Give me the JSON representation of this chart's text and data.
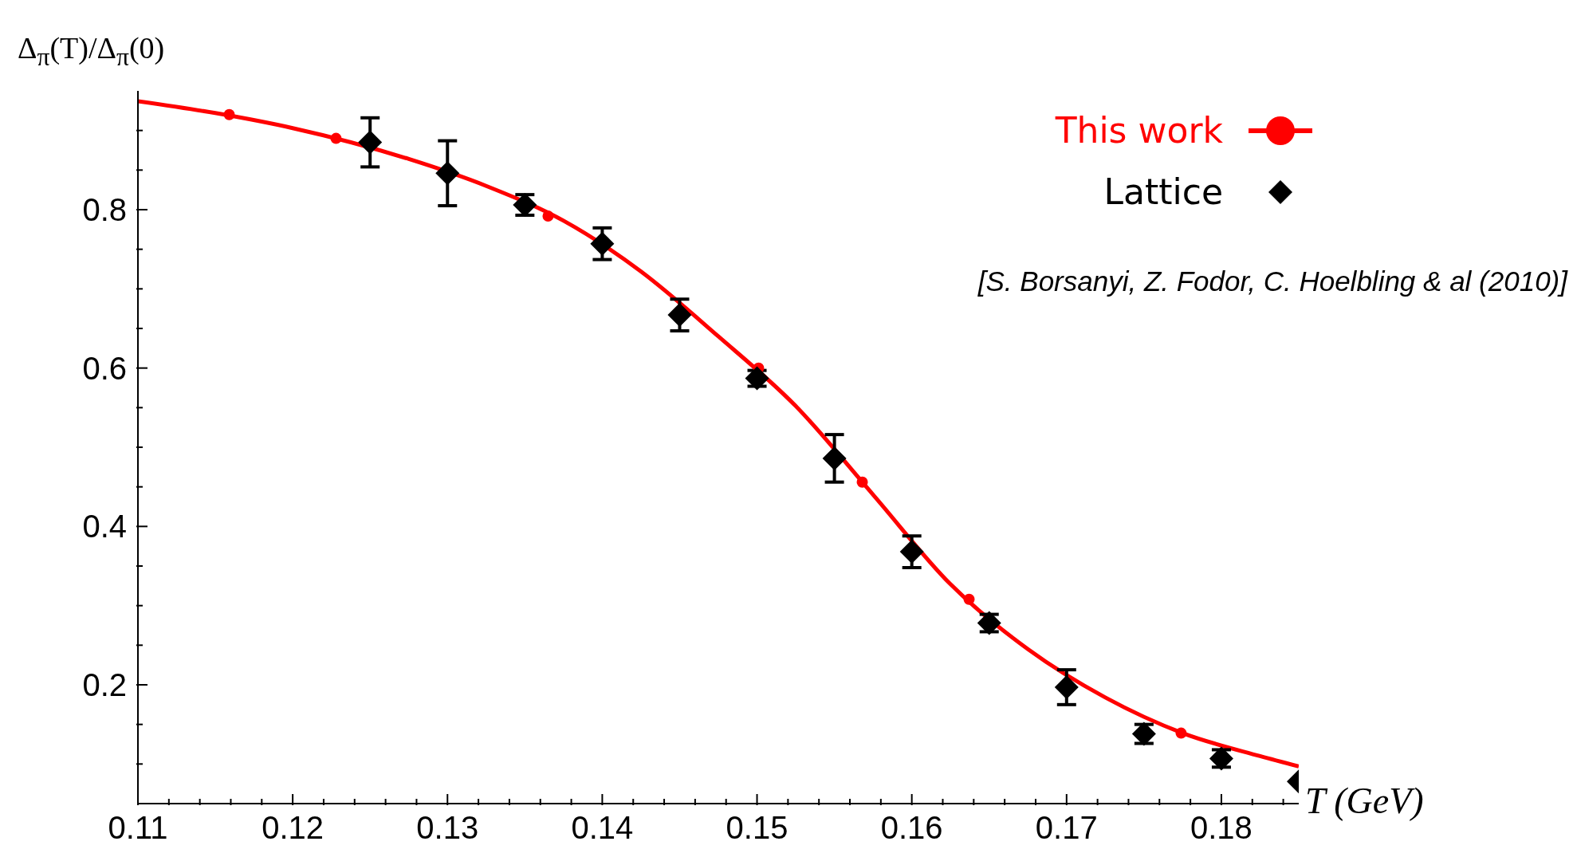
{
  "chart_data": {
    "type": "scatter",
    "ylabel": "Δ$_{π}$(T)/Δ$_{π}$(0)",
    "xlabel": "T (GeV)",
    "xlim": [
      0.11,
      0.185
    ],
    "ylim": [
      0.05,
      0.95
    ],
    "xticks": [
      0.11,
      {
        "value": 0.112,
        "label": null
      },
      {
        "value": 0.114,
        "label": null
      },
      {
        "value": 0.116,
        "label": null
      },
      {
        "value": 0.118,
        "label": null
      },
      0.12,
      {
        "value": 0.122,
        "label": null
      },
      {
        "value": 0.124,
        "label": null
      },
      {
        "value": 0.126,
        "label": null
      },
      {
        "value": 0.128,
        "label": null
      },
      0.13,
      {
        "value": 0.132,
        "label": null
      },
      {
        "value": 0.134,
        "label": null
      },
      {
        "value": 0.136,
        "label": null
      },
      {
        "value": 0.138,
        "label": null
      },
      0.14,
      {
        "value": 0.142,
        "label": null
      },
      {
        "value": 0.144,
        "label": null
      },
      {
        "value": 0.146,
        "label": null
      },
      {
        "value": 0.148,
        "label": null
      },
      0.15,
      {
        "value": 0.152,
        "label": null
      },
      {
        "value": 0.154,
        "label": null
      },
      {
        "value": 0.156,
        "label": null
      },
      {
        "value": 0.158,
        "label": null
      },
      0.16,
      {
        "value": 0.162,
        "label": null
      },
      {
        "value": 0.164,
        "label": null
      },
      {
        "value": 0.166,
        "label": null
      },
      {
        "value": 0.168,
        "label": null
      },
      0.17,
      {
        "value": 0.172,
        "label": null
      },
      {
        "value": 0.174,
        "label": null
      },
      {
        "value": 0.176,
        "label": null
      },
      {
        "value": 0.178,
        "label": null
      },
      0.18,
      {
        "value": 0.182,
        "label": null
      },
      {
        "value": 0.184,
        "label": null
      }
    ],
    "yticks": [
      {
        "value": 0.1,
        "label": null
      },
      {
        "value": 0.15,
        "label": null
      },
      0.2,
      {
        "value": 0.25,
        "label": null
      },
      {
        "value": 0.3,
        "label": null
      },
      {
        "value": 0.35,
        "label": null
      },
      0.4,
      {
        "value": 0.45,
        "label": null
      },
      {
        "value": 0.5,
        "label": null
      },
      {
        "value": 0.55,
        "label": null
      },
      0.6,
      {
        "value": 0.65,
        "label": null
      },
      {
        "value": 0.7,
        "label": null
      },
      {
        "value": 0.75,
        "label": null
      },
      0.8,
      {
        "value": 0.85,
        "label": null
      },
      {
        "value": 0.9,
        "label": null
      }
    ],
    "grid": false,
    "legend": "top right",
    "annotations": [
      "[S. Borsanyi, Z. Fodor, C. Hoelbling & al (2010)]"
    ],
    "series": [
      {
        "name": "This work",
        "type": "line",
        "color": "#ff0000",
        "marker": "none",
        "x": [
          0.11,
          0.115,
          0.12,
          0.1275,
          0.1325,
          0.1375,
          0.1425,
          0.1475,
          0.1525,
          0.1575,
          0.1625,
          0.1675,
          0.1725,
          0.1775,
          0.1825,
          0.185
        ],
        "values": [
          0.937,
          0.922,
          0.903,
          0.864,
          0.83,
          0.786,
          0.722,
          0.64,
          0.552,
          0.44,
          0.327,
          0.245,
          0.184,
          0.139,
          0.11,
          0.097
        ]
      },
      {
        "color": "#ff0000",
        "marker": "circle",
        "x": [
          0.1159,
          0.1228,
          0.1365,
          0.1501,
          0.1568,
          0.1637,
          0.1774
        ],
        "values": [
          0.92,
          0.89,
          0.792,
          0.6,
          0.456,
          0.308,
          0.139
        ]
      },
      {
        "name": "Lattice",
        "color": "#000000",
        "marker": "diamond",
        "x": [
          0.125,
          0.13,
          0.135,
          0.14,
          0.145,
          0.15,
          0.155,
          0.16,
          0.165,
          0.17,
          0.175,
          0.18,
          0.185
        ],
        "values": [
          0.885,
          0.846,
          0.806,
          0.757,
          0.667,
          0.587,
          0.486,
          0.368,
          0.278,
          0.197,
          0.138,
          0.107,
          0.078
        ],
        "errors": [
          0.031,
          0.041,
          0.013,
          0.02,
          0.02,
          0.01,
          0.03,
          0.02,
          0.011,
          0.022,
          0.012,
          0.011,
          null
        ]
      }
    ]
  }
}
